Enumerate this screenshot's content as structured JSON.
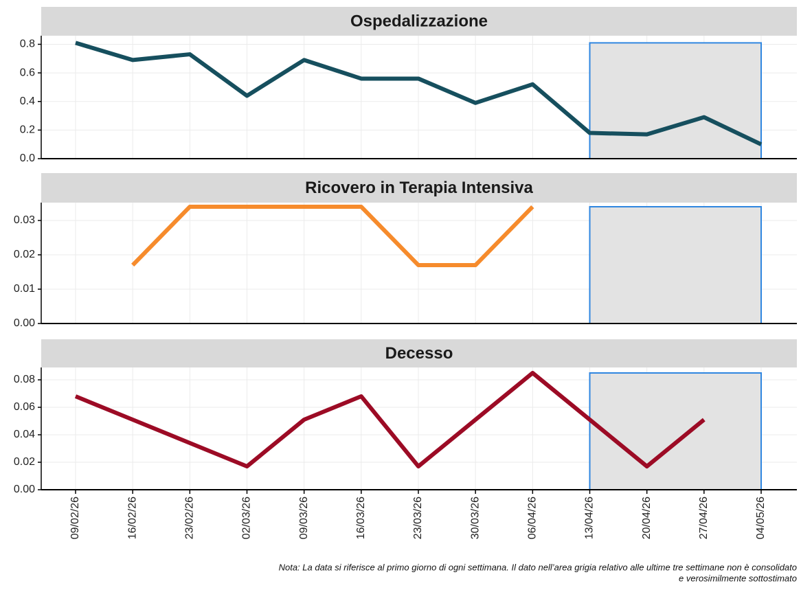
{
  "chart_data": [
    {
      "type": "line",
      "title": "Ospedalizzazione",
      "categories": [
        "09/02/26",
        "16/02/26",
        "23/02/26",
        "02/03/26",
        "09/03/26",
        "16/03/26",
        "23/03/26",
        "30/03/26",
        "06/04/26",
        "13/04/26",
        "20/04/26",
        "27/04/26",
        "04/05/26"
      ],
      "values": [
        0.81,
        0.69,
        0.73,
        0.44,
        0.69,
        0.56,
        0.56,
        0.39,
        0.52,
        0.18,
        0.17,
        0.29,
        0.1
      ],
      "color": "#164f5e",
      "ylim": [
        0,
        0.86
      ],
      "yticks": [
        {
          "value": 0,
          "label": "0.0"
        },
        0.2,
        0.4,
        0.6,
        0.8
      ],
      "grid": true,
      "highlight": [
        "13/04/26",
        "04/05/26"
      ]
    },
    {
      "type": "line",
      "title": "Ricovero in Terapia Intensiva",
      "categories": [
        "09/02/26",
        "16/02/26",
        "23/02/26",
        "02/03/26",
        "09/03/26",
        "16/03/26",
        "23/03/26",
        "30/03/26",
        "06/04/26",
        "13/04/26",
        "20/04/26",
        "27/04/26",
        "04/05/26"
      ],
      "values": [
        null,
        0.017,
        0.034,
        0.034,
        0.034,
        0.034,
        0.017,
        0.017,
        0.034,
        null,
        null,
        null,
        null
      ],
      "color": "#f68b2c",
      "ylim": [
        0,
        0.0352
      ],
      "yticks": [
        {
          "value": 0,
          "label": "0.00"
        },
        0.01,
        0.02,
        0.03
      ],
      "grid": true,
      "highlight": [
        "13/04/26",
        "04/05/26"
      ]
    },
    {
      "type": "line",
      "title": "Decesso",
      "categories": [
        "09/02/26",
        "16/02/26",
        "23/02/26",
        "02/03/26",
        "09/03/26",
        "16/03/26",
        "23/03/26",
        "30/03/26",
        "06/04/26",
        "13/04/26",
        "20/04/26",
        "27/04/26",
        "04/05/26"
      ],
      "values": [
        0.068,
        0.051,
        0.034,
        0.017,
        0.051,
        0.068,
        0.017,
        0.051,
        0.085,
        0.051,
        0.017,
        0.051,
        null
      ],
      "color": "#9c0b25",
      "ylim": [
        0,
        0.089
      ],
      "yticks": [
        {
          "value": 0,
          "label": "0.00"
        },
        0.02,
        0.04,
        0.06,
        0.08
      ],
      "grid": true,
      "highlight": [
        "13/04/26",
        "04/05/26"
      ]
    }
  ],
  "note": [
    "Nota: La data si riferisce al primo giorno di ogni settimana. Il dato nell’area grigia relativo alle ultime tre settimane non è consolidato",
    "e verosimilmente sottostimato"
  ]
}
